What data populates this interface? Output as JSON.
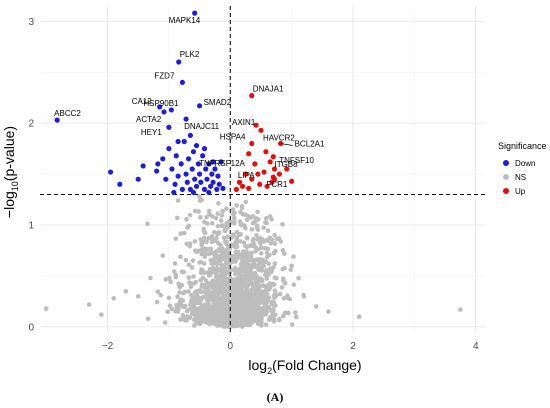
{
  "chart_data": {
    "type": "scatter",
    "xlabel_base": "log",
    "xlabel_sub": "2",
    "xlabel_rest": "(Fold Change)",
    "ylabel_prefix": "−log",
    "ylabel_sub": "10",
    "ylabel_rest": "(p-value)",
    "xlim": [
      -3.1,
      4.15
    ],
    "ylim": [
      -0.05,
      3.15
    ],
    "x_ticks": [
      -2,
      0,
      2,
      4
    ],
    "y_ticks": [
      0,
      1,
      2,
      3
    ],
    "thresholds": {
      "x": [
        0
      ],
      "y": 1.3
    },
    "grid": true,
    "legend": {
      "title": "Significance",
      "position": "right",
      "items": [
        {
          "label": "Down",
          "color": "#1f1fd1"
        },
        {
          "label": "NS",
          "color": "#bdbdbd"
        },
        {
          "label": "Up",
          "color": "#e01010"
        }
      ]
    },
    "panel_label": "(A)",
    "labeled_points": [
      {
        "label": "MAPK14",
        "x": -0.58,
        "y": 3.08,
        "group": "Down"
      },
      {
        "label": "PLK2",
        "x": -0.84,
        "y": 2.6,
        "group": "Down"
      },
      {
        "label": "FZD7",
        "x": -0.78,
        "y": 2.4,
        "group": "Down"
      },
      {
        "label": "CA12",
        "x": -1.15,
        "y": 2.16,
        "group": "Down"
      },
      {
        "label": "HSP90B1",
        "x": -0.96,
        "y": 2.13,
        "group": "Down"
      },
      {
        "label": "SMAD2",
        "x": -0.5,
        "y": 2.17,
        "group": "Down"
      },
      {
        "label": "ACTA2",
        "x": -1.08,
        "y": 2.11,
        "group": "Down"
      },
      {
        "label": "DNAJC11",
        "x": -0.72,
        "y": 2.04,
        "group": "Down"
      },
      {
        "label": "HEY1",
        "x": -1.0,
        "y": 1.96,
        "group": "Down"
      },
      {
        "label": "ABCC2",
        "x": -2.82,
        "y": 2.03,
        "group": "Down"
      },
      {
        "label": "TNFRSF12A",
        "x": -0.28,
        "y": 1.62,
        "group": "Down"
      },
      {
        "label": "DNAJA1",
        "x": 0.35,
        "y": 2.27,
        "group": "Up"
      },
      {
        "label": "AXIN1",
        "x": 0.42,
        "y": 1.98,
        "group": "Up"
      },
      {
        "label": "HAVCR2",
        "x": 0.5,
        "y": 1.93,
        "group": "Up"
      },
      {
        "label": "BCL2A1",
        "x": 0.82,
        "y": 1.8,
        "group": "Up"
      },
      {
        "label": "HSPA4",
        "x": 0.35,
        "y": 1.8,
        "group": "Up"
      },
      {
        "label": "TNFSF10",
        "x": 0.7,
        "y": 1.67,
        "group": "Up"
      },
      {
        "label": "ITGB8",
        "x": 0.72,
        "y": 1.55,
        "group": "Up"
      },
      {
        "label": "LIPA",
        "x": 0.45,
        "y": 1.5,
        "group": "Up"
      },
      {
        "label": "FCR1",
        "x": 0.72,
        "y": 1.45,
        "group": "Up"
      }
    ],
    "down_points": [
      [
        -1.95,
        1.52
      ],
      [
        -1.8,
        1.4
      ],
      [
        -1.5,
        1.45
      ],
      [
        -1.42,
        1.58
      ],
      [
        -1.2,
        1.53
      ],
      [
        -1.1,
        1.65
      ],
      [
        -1.05,
        1.45
      ],
      [
        -1.0,
        1.75
      ],
      [
        -0.95,
        1.55
      ],
      [
        -0.9,
        1.4
      ],
      [
        -0.88,
        1.68
      ],
      [
        -0.85,
        1.48
      ],
      [
        -0.8,
        1.6
      ],
      [
        -0.78,
        1.35
      ],
      [
        -0.75,
        1.82
      ],
      [
        -0.72,
        1.5
      ],
      [
        -0.7,
        1.42
      ],
      [
        -0.68,
        1.65
      ],
      [
        -0.65,
        1.35
      ],
      [
        -0.62,
        1.55
      ],
      [
        -0.6,
        1.72
      ],
      [
        -0.58,
        1.45
      ],
      [
        -0.55,
        1.38
      ],
      [
        -0.52,
        1.6
      ],
      [
        -0.5,
        1.5
      ],
      [
        -0.48,
        1.42
      ],
      [
        -0.45,
        1.68
      ],
      [
        -0.42,
        1.35
      ],
      [
        -0.4,
        1.55
      ],
      [
        -0.38,
        1.45
      ],
      [
        -0.35,
        1.6
      ],
      [
        -0.32,
        1.38
      ],
      [
        -0.3,
        1.5
      ],
      [
        -0.28,
        1.42
      ],
      [
        -0.25,
        1.55
      ],
      [
        -0.22,
        1.35
      ],
      [
        -0.2,
        1.48
      ],
      [
        -0.18,
        1.4
      ],
      [
        -0.15,
        1.62
      ],
      [
        -0.12,
        1.36
      ],
      [
        -0.65,
        1.88
      ],
      [
        -0.85,
        1.82
      ],
      [
        -0.55,
        1.78
      ],
      [
        -0.42,
        1.75
      ],
      [
        -1.18,
        1.6
      ],
      [
        -0.92,
        1.32
      ],
      [
        -0.6,
        1.32
      ],
      [
        -0.35,
        1.32
      ]
    ],
    "up_points": [
      [
        0.1,
        1.35
      ],
      [
        0.15,
        1.42
      ],
      [
        0.2,
        1.38
      ],
      [
        0.25,
        1.5
      ],
      [
        0.3,
        1.36
      ],
      [
        0.35,
        1.45
      ],
      [
        0.4,
        1.6
      ],
      [
        0.48,
        1.4
      ],
      [
        0.55,
        1.52
      ],
      [
        0.6,
        1.38
      ],
      [
        0.65,
        1.62
      ],
      [
        0.7,
        1.47
      ],
      [
        0.58,
        1.72
      ],
      [
        0.68,
        1.42
      ],
      [
        1.0,
        1.43
      ],
      [
        0.8,
        1.5
      ],
      [
        0.92,
        1.55
      ],
      [
        0.3,
        1.7
      ]
    ]
  }
}
